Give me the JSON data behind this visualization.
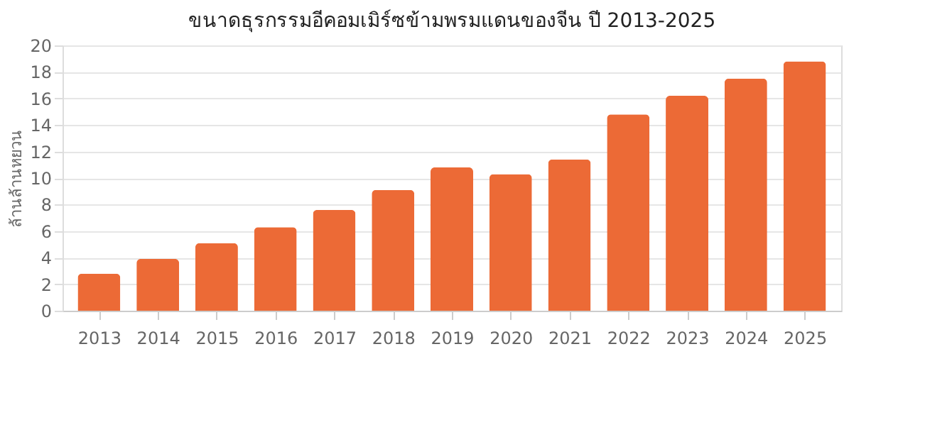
{
  "chart_data": {
    "type": "bar",
    "title": "ขนาดธุรกรรมอีคอมเมิร์ซข้ามพรมแดนของจีน ปี 2013-2025",
    "ylabel": "ล้านล้านหยวน",
    "categories": [
      "2013",
      "2014",
      "2015",
      "2016",
      "2017",
      "2018",
      "2019",
      "2020",
      "2021",
      "2022",
      "2023",
      "2024",
      "2025"
    ],
    "values": [
      2.8,
      3.9,
      5.1,
      6.3,
      7.6,
      9.1,
      10.8,
      10.3,
      11.4,
      14.8,
      16.2,
      17.5,
      18.8
    ],
    "color": "#ec6a36",
    "ylim": [
      0,
      20
    ],
    "yticks": [
      0,
      2,
      4,
      6,
      8,
      10,
      12,
      14,
      16,
      18,
      20
    ],
    "grid": "y"
  }
}
